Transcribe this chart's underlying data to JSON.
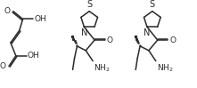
{
  "background": "#ffffff",
  "line_color": "#2a2a2a",
  "line_width": 1.1,
  "font_size": 6.5
}
